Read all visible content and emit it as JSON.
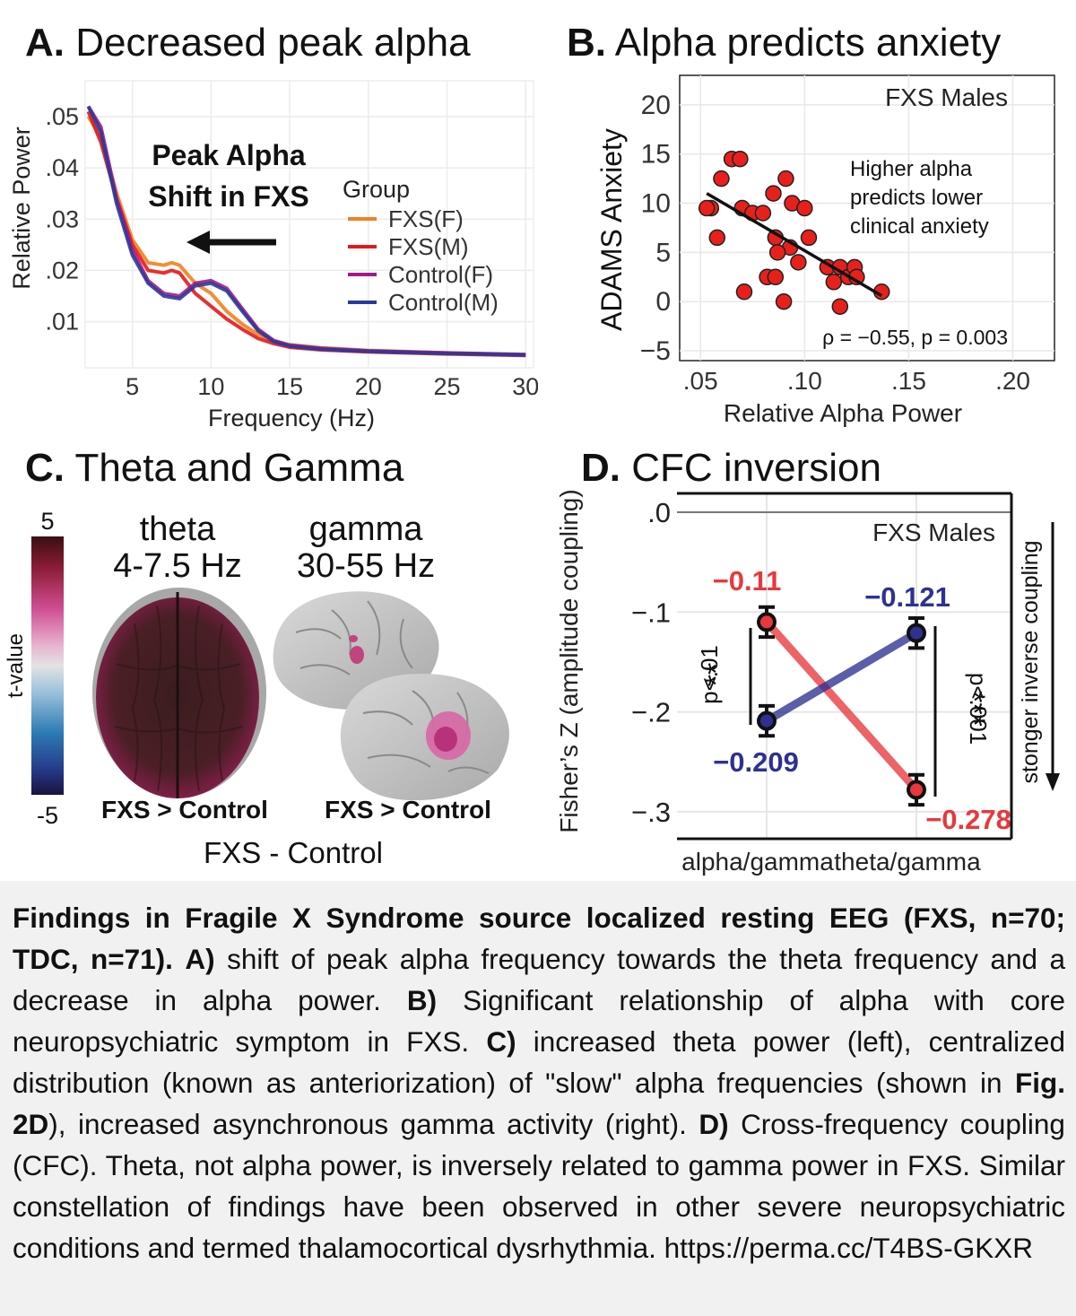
{
  "panels": {
    "a": {
      "letter": "A.",
      "title": "Decreased peak alpha"
    },
    "b": {
      "letter": "B.",
      "title": "Alpha predicts anxiety"
    },
    "c": {
      "letter": "C.",
      "title": "Theta and Gamma"
    },
    "d": {
      "letter": "D.",
      "title": "CFC inversion"
    }
  },
  "chart_data": [
    {
      "type": "line",
      "panel": "A",
      "title": "Decreased peak alpha",
      "xlabel": "Frequency (Hz)",
      "ylabel": "Relative Power",
      "xlim": [
        2,
        30.5
      ],
      "ylim": [
        0.001,
        0.057
      ],
      "x_ticks": [
        5,
        10,
        15,
        20,
        25,
        30
      ],
      "y_ticks": [
        0.01,
        0.02,
        0.03,
        0.04,
        0.05
      ],
      "y_tick_labels": [
        ".01",
        ".02",
        ".03",
        ".04",
        ".05"
      ],
      "grid": true,
      "legend_title": "Group",
      "legend_position": "right",
      "annotation": [
        "Peak Alpha",
        "Shift in FXS"
      ],
      "series": [
        {
          "name": "FXS(F)",
          "color": "#f0821e",
          "x": [
            2.2,
            3,
            4,
            5,
            6,
            7,
            7.5,
            8,
            9,
            10,
            11,
            12,
            13,
            14,
            15,
            17,
            20,
            25,
            30
          ],
          "y": [
            0.05,
            0.046,
            0.035,
            0.026,
            0.0215,
            0.021,
            0.0215,
            0.021,
            0.0175,
            0.0155,
            0.012,
            0.0095,
            0.0075,
            0.0062,
            0.0055,
            0.0049,
            0.0044,
            0.0039,
            0.0035
          ]
        },
        {
          "name": "FXS(M)",
          "color": "#e31a1c",
          "x": [
            2.2,
            3,
            4,
            5,
            6,
            7,
            7.5,
            8,
            9,
            10,
            11,
            12,
            13,
            14,
            15,
            17,
            20,
            25,
            30
          ],
          "y": [
            0.051,
            0.045,
            0.034,
            0.025,
            0.02,
            0.0195,
            0.02,
            0.0195,
            0.0155,
            0.013,
            0.0105,
            0.0085,
            0.0067,
            0.0057,
            0.005,
            0.0045,
            0.0041,
            0.0037,
            0.0034
          ]
        },
        {
          "name": "Control(F)",
          "color": "#a2198a",
          "x": [
            2.2,
            3,
            4,
            5,
            6,
            7,
            8,
            9,
            10,
            11,
            12,
            13,
            14,
            15,
            17,
            20,
            25,
            30
          ],
          "y": [
            0.052,
            0.048,
            0.034,
            0.024,
            0.018,
            0.0155,
            0.015,
            0.0175,
            0.018,
            0.0165,
            0.0125,
            0.0085,
            0.0063,
            0.0054,
            0.0048,
            0.0043,
            0.0039,
            0.0036
          ]
        },
        {
          "name": "Control(M)",
          "color": "#2b3a98",
          "x": [
            2.2,
            3,
            4,
            5,
            6,
            7,
            8,
            9,
            10,
            11,
            12,
            13,
            14,
            15,
            17,
            20,
            25,
            30
          ],
          "y": [
            0.052,
            0.047,
            0.033,
            0.023,
            0.0175,
            0.015,
            0.0145,
            0.017,
            0.0175,
            0.016,
            0.012,
            0.0082,
            0.0061,
            0.0052,
            0.0046,
            0.0042,
            0.0038,
            0.0035
          ]
        }
      ]
    },
    {
      "type": "scatter",
      "panel": "B",
      "title": "Alpha predicts anxiety",
      "xlabel": "Relative Alpha Power",
      "ylabel": "ADAMS Anxiety",
      "xlim": [
        0.04,
        0.22
      ],
      "ylim": [
        -6,
        23
      ],
      "x_ticks": [
        0.05,
        0.1,
        0.15,
        0.2
      ],
      "x_tick_labels": [
        ".05",
        ".10",
        ".15",
        ".20"
      ],
      "y_ticks": [
        -5,
        0,
        5,
        10,
        15,
        20
      ],
      "y_tick_labels": [
        "−5",
        "0",
        "5",
        "10",
        "15",
        "20"
      ],
      "grid": true,
      "label": "FXS Males",
      "annotation": [
        "Higher alpha",
        "predicts lower",
        "clinical anxiety"
      ],
      "stat": "ρ = −0.55, p = 0.003",
      "point_color": "#e8201c",
      "x": [
        0.055,
        0.06,
        0.065,
        0.069,
        0.053,
        0.058,
        0.07,
        0.075,
        0.085,
        0.091,
        0.094,
        0.1,
        0.08,
        0.086,
        0.093,
        0.087,
        0.097,
        0.102,
        0.111,
        0.114,
        0.117,
        0.121,
        0.124,
        0.125,
        0.071,
        0.082,
        0.086,
        0.09,
        0.117,
        0.137
      ],
      "y": [
        9.5,
        12.5,
        14.5,
        14.5,
        9.5,
        6.5,
        9.5,
        9.0,
        11.0,
        12.5,
        10.0,
        9.5,
        9.0,
        6.5,
        5.5,
        5.0,
        4.0,
        6.5,
        3.5,
        2.0,
        3.5,
        2.5,
        3.5,
        2.5,
        1.0,
        2.5,
        2.5,
        0.0,
        -0.5,
        1.0
      ],
      "trend": {
        "x": [
          0.053,
          0.137
        ],
        "y": [
          11.0,
          0.6
        ]
      }
    },
    {
      "type": "line",
      "panel": "D",
      "title": "CFC inversion",
      "xlabel": "",
      "ylabel": "Fisher’s Z (amplitude coupling)",
      "categories": [
        "alpha/gamma",
        "theta/gamma"
      ],
      "ylim": [
        -0.31,
        0.0
      ],
      "y_ticks": [
        0.0,
        -0.1,
        -0.2,
        -0.3
      ],
      "y_tick_labels": [
        ".0",
        "−.1",
        "−.2",
        "−.3"
      ],
      "grid": true,
      "label": "FXS Males",
      "right_label": "stonger inverse coupling",
      "series": [
        {
          "name": "red",
          "color": "#e8383d",
          "values": [
            -0.11,
            -0.278
          ],
          "error": [
            0.015,
            0.015
          ],
          "labels": [
            "−0.11",
            "−0.278"
          ]
        },
        {
          "name": "blue",
          "color": "#2e3192",
          "values": [
            -0.209,
            -0.121
          ],
          "error": [
            0.015,
            0.015
          ],
          "labels": [
            "−0.209",
            "−0.121"
          ]
        }
      ],
      "significance": [
        {
          "stars": "**",
          "p": "p<.01"
        },
        {
          "stars": "***",
          "p": "p<.001"
        }
      ]
    }
  ],
  "brain": {
    "colorbar_title": "t-value",
    "colorbar_max": "5",
    "colorbar_min": "-5",
    "theta_title": "theta",
    "theta_range": "4-7.5 Hz",
    "gamma_title": "gamma",
    "gamma_range": "30-55 Hz",
    "left_contrast": "FXS > Control",
    "right_contrast": "FXS > Control",
    "footer": "FXS - Control"
  },
  "caption": {
    "lead": "Findings in Fragile X Syndrome source localized resting EEG (FXS, n=70; TDC, n=71).",
    "a_tag": "A)",
    "a_text": "shift of peak alpha frequency towards the theta fre­quency and a decrease in alpha power.",
    "b_tag": "B)",
    "b_text": "Significant relationship of alpha with core neuropsychiatric symptom in FXS.",
    "c_tag": "C)",
    "c_text": "increased theta power (left), centralized distribution (known as anteriorization) of \"slow\" alpha frequen­cies (shown in",
    "fig_ref": "Fig. 2D",
    "c_text2": "), increased asynchronous gamma activity (right).",
    "d_tag": "D)",
    "d_text": "Cross-frequency coupling (CFC). Theta, not alpha power, is inversely relat­ed to gamma power in FXS. Similar constellation of findings have been ob­served in other severe neuropsychiatric conditions and termed thalamocorti­cal dysrhythmia. https://perma.cc/T4BS-GKXR"
  }
}
